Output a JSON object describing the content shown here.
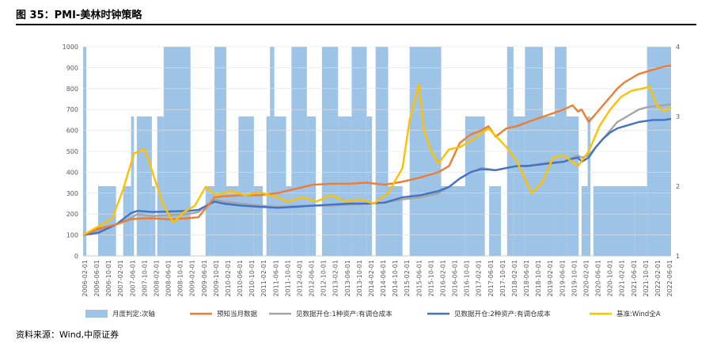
{
  "header": {
    "prefix": "",
    "title": "图 35：PMI-美林时钟策略"
  },
  "source": "资料来源：Wind,中原证券",
  "chart_data": {
    "type": "line",
    "title": "",
    "ylim_left": [
      0,
      1000
    ],
    "yticks_left": [
      0,
      100,
      200,
      300,
      400,
      500,
      600,
      700,
      800,
      900,
      1000
    ],
    "ylim_right": [
      1,
      4
    ],
    "yticks_right": [
      1,
      2,
      3,
      4
    ],
    "x_labels": [
      "2006-02-01",
      "2006-06-01",
      "2006-10-01",
      "2007-02-01",
      "2007-06-01",
      "2007-10-01",
      "2008-02-01",
      "2008-06-01",
      "2008-10-01",
      "2009-02-01",
      "2009-06-01",
      "2009-10-01",
      "2010-02-01",
      "2010-06-01",
      "2010-10-01",
      "2011-02-01",
      "2011-06-01",
      "2011-10-01",
      "2012-02-01",
      "2012-06-01",
      "2012-10-01",
      "2013-02-01",
      "2013-06-01",
      "2013-10-01",
      "2014-02-01",
      "2014-06-01",
      "2014-10-01",
      "2015-02-01",
      "2015-06-01",
      "2015-10-01",
      "2016-02-01",
      "2016-06-01",
      "2016-10-01",
      "2017-02-01",
      "2017-06-01",
      "2017-10-01",
      "2018-02-01",
      "2018-06-01",
      "2018-10-01",
      "2019-02-01",
      "2019-06-01",
      "2019-10-01",
      "2020-02-01",
      "2020-06-01",
      "2020-10-01",
      "2021-02-01",
      "2021-06-01",
      "2021-10-01",
      "2022-02-01",
      "2022-06-01"
    ],
    "x_range": [
      2006.08,
      2022.5
    ],
    "series": [
      {
        "name": "月度判定:次轴",
        "kind": "bar-secondary",
        "color": "#9DC3E6",
        "periods": [
          {
            "start": 2006.08,
            "end": 2006.17,
            "level": 4
          },
          {
            "start": 2006.5,
            "end": 2007.0,
            "level": 2
          },
          {
            "start": 2007.2,
            "end": 2007.42,
            "level": 2
          },
          {
            "start": 2007.42,
            "end": 2007.5,
            "level": 3
          },
          {
            "start": 2007.58,
            "end": 2008.0,
            "level": 3
          },
          {
            "start": 2008.0,
            "end": 2008.1,
            "level": 2
          },
          {
            "start": 2008.15,
            "end": 2008.33,
            "level": 3
          },
          {
            "start": 2008.33,
            "end": 2009.08,
            "level": 4
          },
          {
            "start": 2009.5,
            "end": 2009.75,
            "level": 2
          },
          {
            "start": 2009.75,
            "end": 2010.08,
            "level": 4
          },
          {
            "start": 2010.08,
            "end": 2010.42,
            "level": 2
          },
          {
            "start": 2010.42,
            "end": 2010.85,
            "level": 3
          },
          {
            "start": 2010.85,
            "end": 2011.1,
            "level": 2
          },
          {
            "start": 2011.2,
            "end": 2011.3,
            "level": 3
          },
          {
            "start": 2011.3,
            "end": 2011.42,
            "level": 4
          },
          {
            "start": 2011.42,
            "end": 2011.75,
            "level": 3
          },
          {
            "start": 2011.75,
            "end": 2011.9,
            "level": 2
          },
          {
            "start": 2011.9,
            "end": 2012.33,
            "level": 4
          },
          {
            "start": 2012.33,
            "end": 2012.58,
            "level": 3
          },
          {
            "start": 2012.75,
            "end": 2013.2,
            "level": 4
          },
          {
            "start": 2013.2,
            "end": 2013.58,
            "level": 3
          },
          {
            "start": 2013.58,
            "end": 2014.0,
            "level": 4
          },
          {
            "start": 2014.0,
            "end": 2014.15,
            "level": 3
          },
          {
            "start": 2014.25,
            "end": 2014.6,
            "level": 4
          },
          {
            "start": 2014.6,
            "end": 2015.0,
            "level": 2
          },
          {
            "start": 2015.2,
            "end": 2016.08,
            "level": 4
          },
          {
            "start": 2016.08,
            "end": 2016.75,
            "level": 2
          },
          {
            "start": 2016.75,
            "end": 2017.3,
            "level": 3
          },
          {
            "start": 2017.42,
            "end": 2017.75,
            "level": 2
          },
          {
            "start": 2017.92,
            "end": 2018.1,
            "level": 4
          },
          {
            "start": 2018.1,
            "end": 2018.42,
            "level": 3
          },
          {
            "start": 2018.42,
            "end": 2018.92,
            "level": 4
          },
          {
            "start": 2018.92,
            "end": 2019.25,
            "level": 3
          },
          {
            "start": 2019.25,
            "end": 2019.58,
            "level": 4
          },
          {
            "start": 2019.58,
            "end": 2019.92,
            "level": 3
          },
          {
            "start": 2020.0,
            "end": 2020.17,
            "level": 2
          },
          {
            "start": 2020.17,
            "end": 2020.25,
            "level": 3
          },
          {
            "start": 2020.33,
            "end": 2021.5,
            "level": 2
          },
          {
            "start": 2021.5,
            "end": 2021.83,
            "level": 2
          },
          {
            "start": 2021.83,
            "end": 2022.5,
            "level": 4
          }
        ]
      },
      {
        "name": "预知当月数据",
        "kind": "line",
        "color": "#ED7D31",
        "x": [
          2006.08,
          2006.5,
          2007.0,
          2007.42,
          2007.6,
          2008.0,
          2008.5,
          2009.0,
          2009.3,
          2009.75,
          2010.0,
          2010.5,
          2011.0,
          2011.5,
          2012.0,
          2012.5,
          2013.0,
          2013.5,
          2014.0,
          2014.5,
          2015.0,
          2015.5,
          2016.0,
          2016.3,
          2016.6,
          2016.9,
          2017.2,
          2017.4,
          2017.6,
          2017.9,
          2018.2,
          2018.5,
          2019.0,
          2019.5,
          2019.75,
          2019.9,
          2020.0,
          2020.2,
          2020.4,
          2020.6,
          2020.8,
          2021.0,
          2021.2,
          2021.4,
          2021.6,
          2021.8,
          2022.0,
          2022.3,
          2022.5
        ],
        "y": [
          100,
          130,
          150,
          175,
          178,
          180,
          175,
          180,
          185,
          280,
          285,
          290,
          290,
          300,
          320,
          340,
          345,
          345,
          350,
          340,
          355,
          375,
          400,
          430,
          540,
          580,
          600,
          620,
          570,
          610,
          620,
          640,
          670,
          700,
          720,
          690,
          700,
          640,
          680,
          720,
          760,
          800,
          830,
          850,
          870,
          880,
          890,
          905,
          910
        ]
      },
      {
        "name": "见数据开仓:1种资产:有调仓成本",
        "kind": "line",
        "color": "#A5A5A5",
        "x": [
          2006.08,
          2006.5,
          2007.0,
          2007.42,
          2007.6,
          2008.0,
          2008.5,
          2009.0,
          2009.3,
          2009.75,
          2010.0,
          2010.5,
          2011.0,
          2011.5,
          2012.0,
          2012.5,
          2013.0,
          2013.5,
          2014.0,
          2014.5,
          2015.0,
          2015.5,
          2016.0,
          2016.3,
          2016.6,
          2016.9,
          2017.2,
          2017.6,
          2017.9,
          2018.2,
          2018.5,
          2019.0,
          2019.5,
          2019.75,
          2019.9,
          2020.0,
          2020.2,
          2020.4,
          2020.6,
          2020.8,
          2021.0,
          2021.2,
          2021.4,
          2021.6,
          2021.8,
          2022.0,
          2022.3,
          2022.5
        ],
        "y": [
          100,
          120,
          150,
          180,
          200,
          190,
          195,
          200,
          210,
          270,
          260,
          250,
          240,
          235,
          238,
          240,
          240,
          245,
          250,
          255,
          270,
          280,
          300,
          330,
          370,
          400,
          420,
          410,
          420,
          430,
          430,
          445,
          450,
          470,
          480,
          470,
          480,
          520,
          560,
          600,
          640,
          660,
          680,
          700,
          710,
          715,
          720,
          725
        ]
      },
      {
        "name": "见数据开仓:2种资产:有调仓成本",
        "kind": "line",
        "color": "#4472C4",
        "x": [
          2006.08,
          2006.5,
          2007.0,
          2007.42,
          2007.6,
          2008.0,
          2008.5,
          2009.0,
          2009.3,
          2009.75,
          2010.0,
          2010.5,
          2011.0,
          2011.5,
          2012.0,
          2012.5,
          2013.0,
          2013.5,
          2014.0,
          2014.5,
          2015.0,
          2015.5,
          2016.0,
          2016.3,
          2016.6,
          2016.9,
          2017.2,
          2017.6,
          2017.9,
          2018.2,
          2018.5,
          2019.0,
          2019.5,
          2019.75,
          2019.9,
          2020.0,
          2020.2,
          2020.4,
          2020.6,
          2020.8,
          2021.0,
          2021.2,
          2021.4,
          2021.6,
          2021.8,
          2022.0,
          2022.3,
          2022.5
        ],
        "y": [
          100,
          110,
          150,
          205,
          215,
          210,
          212,
          215,
          220,
          260,
          250,
          240,
          235,
          230,
          235,
          240,
          245,
          250,
          250,
          255,
          280,
          290,
          310,
          330,
          370,
          400,
          415,
          410,
          420,
          430,
          430,
          440,
          450,
          465,
          470,
          450,
          470,
          520,
          560,
          590,
          610,
          620,
          630,
          640,
          645,
          650,
          650,
          655
        ]
      },
      {
        "name": "基准:Wind全A",
        "kind": "line",
        "color": "#FFC000",
        "x": [
          2006.08,
          2006.5,
          2006.9,
          2007.2,
          2007.5,
          2007.8,
          2008.0,
          2008.3,
          2008.6,
          2008.9,
          2009.2,
          2009.5,
          2009.8,
          2010.2,
          2010.6,
          2011.0,
          2011.4,
          2011.8,
          2012.2,
          2012.6,
          2013.0,
          2013.4,
          2013.8,
          2014.2,
          2014.6,
          2015.0,
          2015.2,
          2015.45,
          2015.6,
          2015.8,
          2016.0,
          2016.3,
          2016.6,
          2017.0,
          2017.4,
          2017.9,
          2018.2,
          2018.6,
          2018.9,
          2019.2,
          2019.5,
          2019.9,
          2020.2,
          2020.5,
          2020.8,
          2021.1,
          2021.4,
          2021.7,
          2021.9,
          2022.1,
          2022.3,
          2022.5
        ],
        "y": [
          100,
          140,
          180,
          320,
          490,
          510,
          410,
          250,
          160,
          210,
          240,
          330,
          290,
          310,
          290,
          305,
          285,
          260,
          280,
          260,
          290,
          260,
          270,
          250,
          300,
          420,
          650,
          820,
          600,
          500,
          440,
          510,
          520,
          560,
          610,
          520,
          450,
          300,
          350,
          470,
          480,
          430,
          500,
          620,
          700,
          760,
          790,
          800,
          810,
          720,
          690,
          710
        ]
      }
    ]
  }
}
